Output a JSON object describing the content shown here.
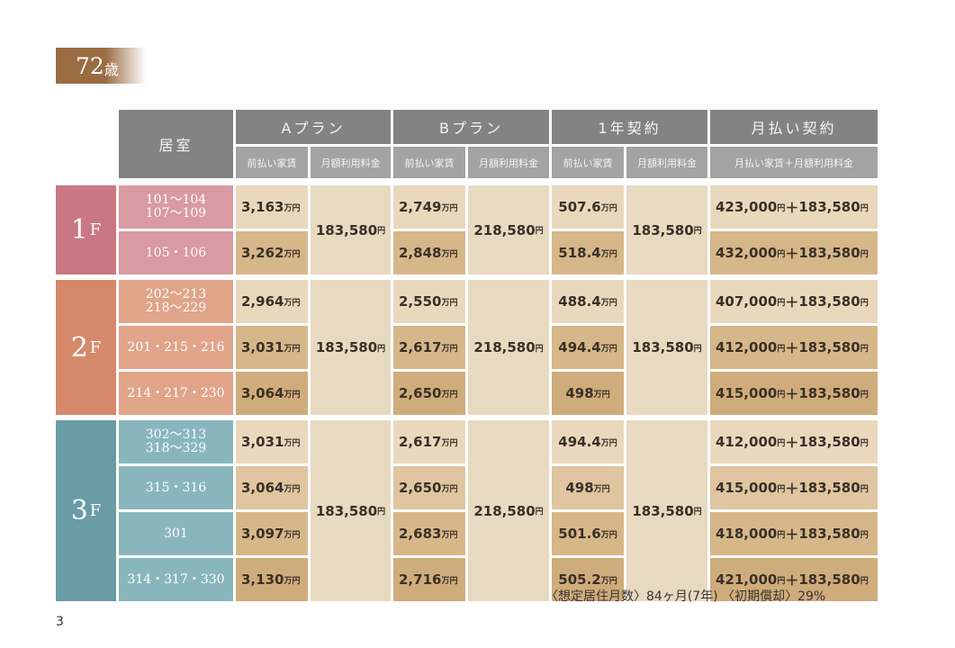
{
  "age_badge": {
    "number": "72",
    "unit": "歳"
  },
  "header": {
    "room": "居室",
    "plans": [
      {
        "label": "Aプラン",
        "sub": [
          "前払い家賃",
          "月額利用料金"
        ]
      },
      {
        "label": "Bプラン",
        "sub": [
          "前払い家賃",
          "月額利用料金"
        ]
      },
      {
        "label": "1年契約",
        "sub": [
          "前払い家賃",
          "月額利用料金"
        ]
      },
      {
        "label": "月払い契約",
        "sub": [
          "月払い家賃＋月額利用料金"
        ]
      }
    ]
  },
  "unit_man": "万円",
  "unit_yen": "円",
  "floors": [
    {
      "label": "1",
      "suffix": "F",
      "color": "#c97883",
      "monthly": {
        "a": "183,580",
        "b": "218,580",
        "y": "183,580"
      },
      "rows": [
        {
          "room": "101～104\n107～109",
          "a": "3,163",
          "b": "2,749",
          "y": "507.6",
          "m": "423,000",
          "m2": "183,580"
        },
        {
          "room": "105・106",
          "a": "3,262",
          "b": "2,848",
          "y": "518.4",
          "m": "432,000",
          "m2": "183,580"
        }
      ]
    },
    {
      "label": "2",
      "suffix": "F",
      "color": "#d5896a",
      "monthly": {
        "a": "183,580",
        "b": "218,580",
        "y": "183,580"
      },
      "rows": [
        {
          "room": "202～213\n218～229",
          "a": "2,964",
          "b": "2,550",
          "y": "488.4",
          "m": "407,000",
          "m2": "183,580"
        },
        {
          "room": "201・215・216",
          "a": "3,031",
          "b": "2,617",
          "y": "494.4",
          "m": "412,000",
          "m2": "183,580"
        },
        {
          "room": "214・217・230",
          "a": "3,064",
          "b": "2,650",
          "y": "498",
          "m": "415,000",
          "m2": "183,580"
        }
      ]
    },
    {
      "label": "3",
      "suffix": "F",
      "color": "#6a9ca6",
      "monthly": {
        "a": "183,580",
        "b": "218,580",
        "y": "183,580"
      },
      "rows": [
        {
          "room": "302～313\n318～329",
          "a": "3,031",
          "b": "2,617",
          "y": "494.4",
          "m": "412,000",
          "m2": "183,580"
        },
        {
          "room": "315・316",
          "a": "3,064",
          "b": "2,650",
          "y": "498",
          "m": "415,000",
          "m2": "183,580"
        },
        {
          "room": "301",
          "a": "3,097",
          "b": "2,683",
          "y": "501.6",
          "m": "418,000",
          "m2": "183,580"
        },
        {
          "room": "314・317・330",
          "a": "3,130",
          "b": "2,716",
          "y": "505.2",
          "m": "421,000",
          "m2": "183,580"
        }
      ]
    }
  ],
  "footnote": "〈想定居住月数〉84ヶ月(7年) 〈初期償却〉29%",
  "page_number": "3"
}
